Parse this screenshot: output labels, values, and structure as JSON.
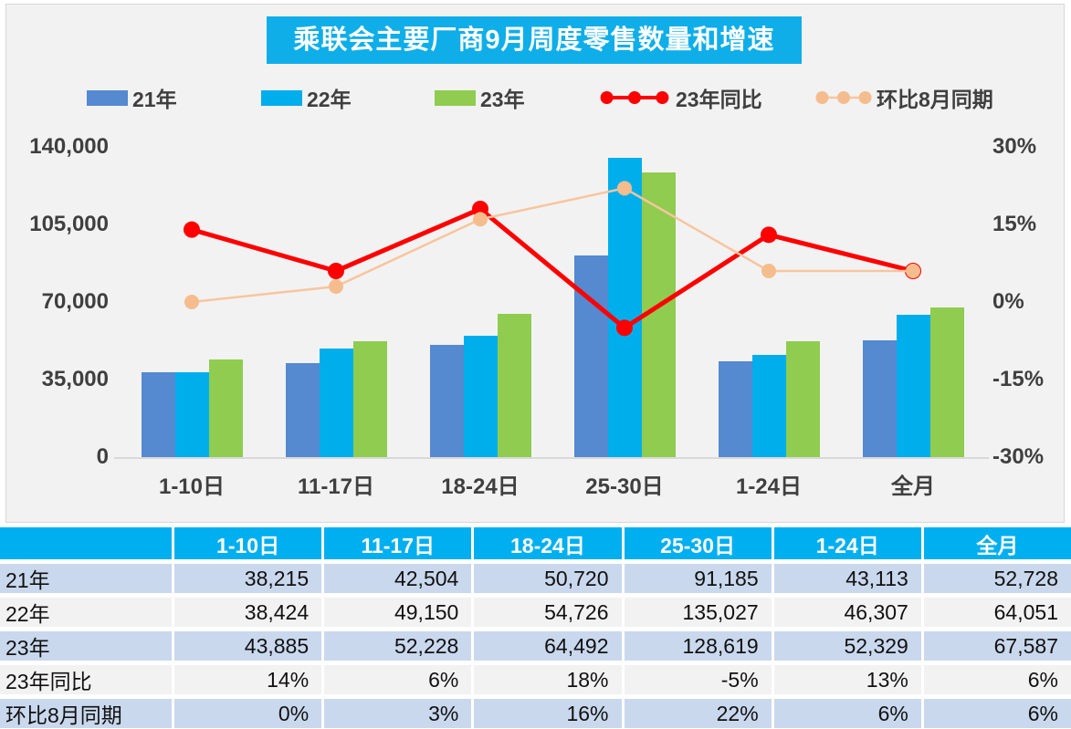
{
  "title": "乘联会主要厂商9月周度零售数量和增速",
  "colors": {
    "title_bg": "#0FAEE9",
    "card_bg": "#F2F2F2",
    "bar_21": "#5589D0",
    "bar_22": "#00AEEC",
    "bar_23": "#8FCC50",
    "line_yoy": "#FE0000",
    "line_mom": "#F8C59E",
    "line_mom_marker": "#F5BD8E",
    "table_header_bg": "#00AFEF",
    "table_row_blue": "#C9D8ED",
    "table_row_gray": "#F2F2F2"
  },
  "chart_data": {
    "type": "bar",
    "subtype": "grouped bars with two overlay lines on secondary percent axis",
    "title": "乘联会主要厂商9月周度零售数量和增速",
    "categories": [
      "1-10日",
      "11-17日",
      "18-24日",
      "25-30日",
      "1-24日",
      "全月"
    ],
    "series": [
      {
        "name": "21年",
        "type": "bar",
        "color": "#5589D0",
        "values": [
          38215,
          42504,
          50720,
          91185,
          43113,
          52728
        ]
      },
      {
        "name": "22年",
        "type": "bar",
        "color": "#00AEEC",
        "values": [
          38424,
          49150,
          54726,
          135027,
          46307,
          64051
        ]
      },
      {
        "name": "23年",
        "type": "bar",
        "color": "#8FCC50",
        "values": [
          43885,
          52228,
          64492,
          128619,
          52329,
          67587
        ]
      },
      {
        "name": "23年同比",
        "type": "line",
        "color": "#FE0000",
        "marker_color": "#FE0000",
        "values": [
          14,
          6,
          18,
          -5,
          13,
          6
        ]
      },
      {
        "name": "环比8月同期",
        "type": "line",
        "color": "#F8C59E",
        "marker_color": "#F5BD8E",
        "values": [
          0,
          3,
          16,
          22,
          6,
          6
        ]
      }
    ],
    "left_axis": {
      "label": "",
      "ticks": [
        "140,000",
        "105,000",
        "70,000",
        "35,000",
        "0"
      ],
      "min": 0,
      "max": 140000
    },
    "right_axis": {
      "label": "",
      "ticks": [
        "30%",
        "15%",
        "0%",
        "-15%",
        "-30%"
      ],
      "min": -30,
      "max": 30
    },
    "grid": false,
    "legend_position": "top"
  },
  "table": {
    "header": [
      "",
      "1-10日",
      "11-17日",
      "18-24日",
      "25-30日",
      "1-24日",
      "全月"
    ],
    "rows": [
      {
        "label": "21年",
        "values": [
          "38,215",
          "42,504",
          "50,720",
          "91,185",
          "43,113",
          "52,728"
        ]
      },
      {
        "label": "22年",
        "values": [
          "38,424",
          "49,150",
          "54,726",
          "135,027",
          "46,307",
          "64,051"
        ]
      },
      {
        "label": "23年",
        "values": [
          "43,885",
          "52,228",
          "64,492",
          "128,619",
          "52,329",
          "67,587"
        ]
      },
      {
        "label": "23年同比",
        "values": [
          "14%",
          "6%",
          "18%",
          "-5%",
          "13%",
          "6%"
        ]
      },
      {
        "label": "环比8月同期",
        "values": [
          "0%",
          "3%",
          "16%",
          "22%",
          "6%",
          "6%"
        ]
      }
    ]
  }
}
